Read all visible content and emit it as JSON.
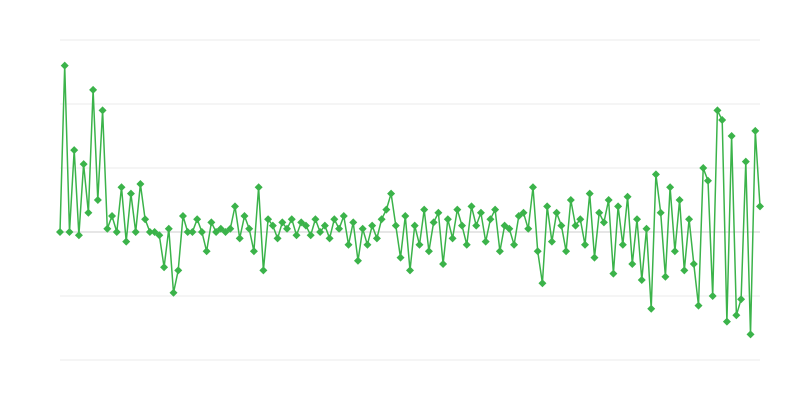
{
  "chart_data": {
    "type": "line",
    "title": "",
    "xlabel": "",
    "ylabel": "",
    "ylim": [
      -2,
      3
    ],
    "grid": true,
    "legend": "none",
    "marker": "diamond",
    "colors": {
      "series": "#3bb34a",
      "grid": "#ebebeb"
    },
    "series": [
      {
        "values": [
          0,
          2.6,
          0,
          1.28,
          -0.05,
          1.06,
          0.3,
          2.22,
          0.5,
          1.9,
          0.05,
          0.25,
          0,
          0.7,
          -0.15,
          0.6,
          0,
          0.75,
          0.2,
          0,
          0,
          -0.05,
          -0.55,
          0.05,
          -0.95,
          -0.6,
          0.25,
          0,
          0,
          0.2,
          0,
          -0.3,
          0.15,
          0,
          0.05,
          0,
          0.05,
          0.4,
          -0.1,
          0.25,
          0.05,
          -0.3,
          0.7,
          -0.6,
          0.2,
          0.1,
          -0.1,
          0.15,
          0.05,
          0.2,
          -0.05,
          0.15,
          0.1,
          -0.05,
          0.2,
          0,
          0.1,
          -0.1,
          0.2,
          0.05,
          0.25,
          -0.2,
          0.15,
          -0.45,
          0.05,
          -0.2,
          0.1,
          -0.1,
          0.2,
          0.35,
          0.6,
          0.1,
          -0.4,
          0.25,
          -0.6,
          0.1,
          -0.2,
          0.35,
          -0.3,
          0.15,
          0.3,
          -0.5,
          0.2,
          -0.1,
          0.35,
          0.1,
          -0.2,
          0.4,
          0.1,
          0.3,
          -0.15,
          0.2,
          0.35,
          -0.3,
          0.1,
          0.05,
          -0.2,
          0.25,
          0.3,
          0.05,
          0.7,
          -0.3,
          -0.8,
          0.4,
          -0.15,
          0.3,
          0.1,
          -0.3,
          0.5,
          0.1,
          0.2,
          -0.2,
          0.6,
          -0.4,
          0.3,
          0.15,
          0.5,
          -0.65,
          0.4,
          -0.2,
          0.55,
          -0.5,
          0.2,
          -0.75,
          0.05,
          -1.2,
          0.9,
          0.3,
          -0.7,
          0.7,
          -0.3,
          0.5,
          -0.6,
          0.2,
          -0.5,
          -1.15,
          1.0,
          0.8,
          -1.0,
          1.9,
          1.75,
          -1.4,
          1.5,
          -1.3,
          -1.05,
          1.1,
          -1.6,
          1.58,
          0.4
        ]
      }
    ]
  }
}
